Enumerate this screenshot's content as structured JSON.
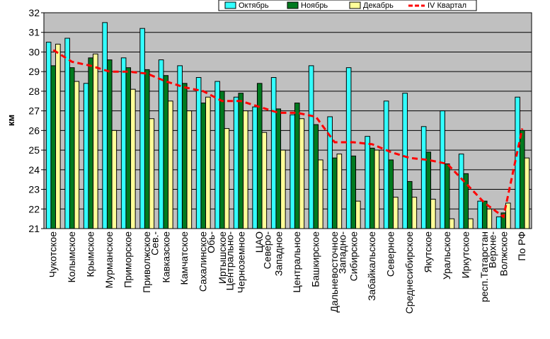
{
  "chart_data": {
    "type": "bar",
    "title": "",
    "xlabel": "",
    "ylabel": "км",
    "ylim": [
      21,
      32
    ],
    "yticks": [
      21,
      22,
      23,
      24,
      25,
      26,
      27,
      28,
      29,
      30,
      31,
      32
    ],
    "grid": true,
    "legend_position": "top-right",
    "categories": [
      "Чукотское",
      "Колымское",
      "Крымское",
      "Мурманское",
      "Приморское",
      "Приволжское",
      "Сев.-Кавказское",
      "Камчатское",
      "Сахалинское",
      "Обь-Иртышское",
      "Центрально-Черноземное",
      "ЦАО",
      "Северо-Западное",
      "Центральное",
      "Башкирское",
      "Дальневосточное",
      "Западно-Сибирское",
      "Забайкальское",
      "Северное",
      "Среднесибирское",
      "Якутское",
      "Уральское",
      "Иркутское",
      "респ.Татарстан",
      "Верхне-Волжское",
      "По РФ"
    ],
    "category_lines": [
      [
        "Чукотское"
      ],
      [
        "Колымское"
      ],
      [
        "Крымское"
      ],
      [
        "Мурманское"
      ],
      [
        "Приморское"
      ],
      [
        "Приволжское"
      ],
      [
        "Сев.-",
        "Кавказское"
      ],
      [
        "Камчатское"
      ],
      [
        "Сахалинское"
      ],
      [
        "Обь-",
        "Иртышское"
      ],
      [
        "Центрально-",
        "Черноземное"
      ],
      [
        "ЦАО"
      ],
      [
        "Северо-",
        "Западное"
      ],
      [
        "Центральное"
      ],
      [
        "Башкирское"
      ],
      [
        "Дальневосточное"
      ],
      [
        "Западно-",
        "Сибирское"
      ],
      [
        "Забайкальское"
      ],
      [
        "Северное"
      ],
      [
        "Среднесибирское"
      ],
      [
        "Якутское"
      ],
      [
        "Уральское"
      ],
      [
        "Иркутское"
      ],
      [
        "респ.Татарстан"
      ],
      [
        "Верхне-",
        "Волжское"
      ],
      [
        "По РФ"
      ]
    ],
    "series": [
      {
        "name": "Октябрь",
        "kind": "bar",
        "color": "#33ffff",
        "values": [
          30.5,
          30.7,
          28.4,
          31.5,
          29.7,
          31.2,
          29.6,
          29.3,
          28.7,
          28.5,
          27.7,
          27.2,
          28.7,
          26.8,
          29.3,
          26.7,
          29.2,
          25.7,
          27.5,
          27.9,
          26.2,
          27.0,
          24.8,
          22.4,
          21.6,
          27.7
        ]
      },
      {
        "name": "Ноябрь",
        "kind": "bar",
        "color": "#007a1f",
        "values": [
          29.3,
          29.2,
          29.7,
          29.6,
          29.2,
          29.1,
          28.8,
          28.4,
          27.4,
          28.0,
          27.9,
          28.4,
          27.1,
          27.4,
          26.3,
          24.6,
          24.7,
          25.1,
          24.5,
          23.4,
          24.9,
          24.3,
          23.8,
          22.4,
          21.8,
          26.0
        ]
      },
      {
        "name": "Декабрь",
        "kind": "bar",
        "color": "#ffff99",
        "values": [
          30.4,
          28.5,
          29.9,
          26.0,
          28.1,
          26.6,
          27.5,
          27.0,
          27.7,
          26.1,
          27.0,
          25.9,
          25.0,
          26.6,
          24.5,
          24.8,
          22.4,
          25.0,
          22.6,
          22.6,
          22.5,
          21.5,
          21.5,
          22.0,
          22.3,
          24.6
        ]
      },
      {
        "name": "IV Квартал",
        "kind": "line",
        "color": "#ff0000",
        "values": [
          30.1,
          29.5,
          29.3,
          29.0,
          29.0,
          28.9,
          28.5,
          28.2,
          28.0,
          27.5,
          27.5,
          27.2,
          26.9,
          26.9,
          26.7,
          25.4,
          25.4,
          25.3,
          24.9,
          24.6,
          24.5,
          24.3,
          23.3,
          22.3,
          21.6,
          26.1
        ]
      }
    ]
  }
}
